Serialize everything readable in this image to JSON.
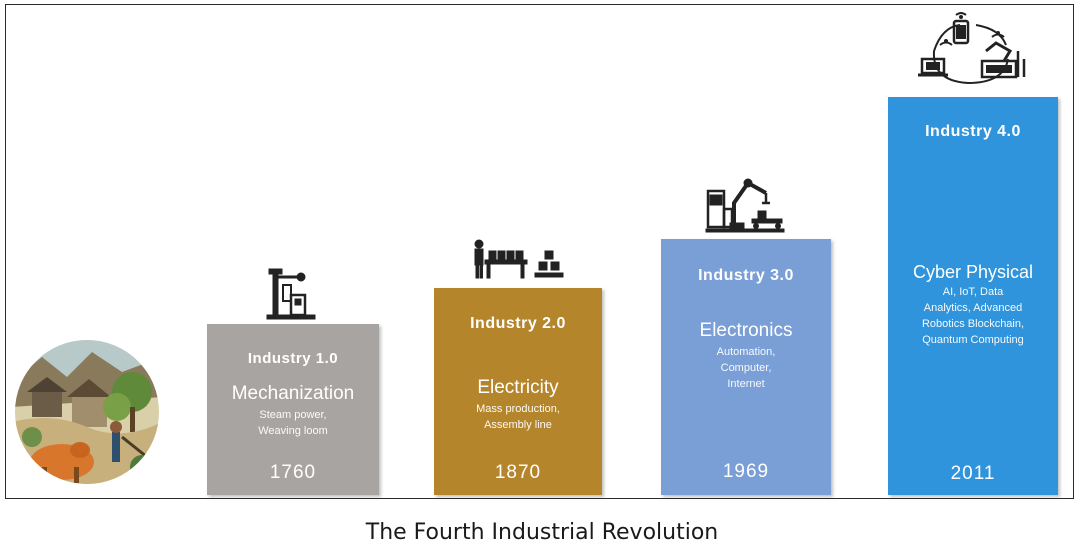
{
  "caption": "The Fourth Industrial Revolution",
  "stages": [
    {
      "title": "Industry 1.0",
      "subtitle": "Mechanization",
      "desc": [
        "Steam power,",
        "Weaving loom"
      ],
      "year": "1760",
      "color": "#a8a4a2",
      "icon": "steam-engine-icon"
    },
    {
      "title": "Industry 2.0",
      "subtitle": "Electricity",
      "desc": [
        "Mass production,",
        "Assembly line"
      ],
      "year": "1870",
      "color": "#b5852b",
      "icon": "assembly-line-icon"
    },
    {
      "title": "Industry 3.0",
      "subtitle": "Electronics",
      "desc": [
        "Automation,",
        "Computer,",
        "Internet"
      ],
      "year": "1969",
      "color": "#7a9ed6",
      "icon": "robot-arm-icon"
    },
    {
      "title": "Industry 4.0",
      "subtitle": "Cyber Physical",
      "desc": [
        "AI, IoT, Data",
        "Analytics, Advanced",
        "Robotics Blockchain,",
        "Quantum Computing"
      ],
      "year": "2011",
      "color": "#2f94dc",
      "icon": "network-devices-icon"
    }
  ],
  "illustration": {
    "name": "agricultural-era-illustration"
  }
}
